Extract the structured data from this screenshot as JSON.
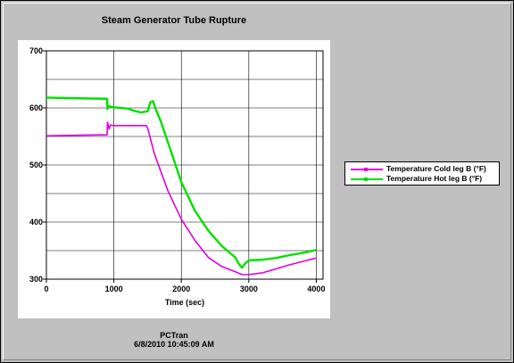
{
  "window": {
    "title": "Steam Generator Tube Rupture",
    "footer_line1": "PCTran",
    "footer_line2": "6/8/2010 10:45:09 AM"
  },
  "legend": [
    {
      "label": "Temperature Cold leg B (°F)",
      "color": "#e000e0"
    },
    {
      "label": "Temperature Hot leg B (°F)",
      "color": "#00e000"
    }
  ],
  "chart_data": {
    "type": "line",
    "title": "Steam Generator Tube Rupture",
    "xlabel": "Time (sec)",
    "ylabel": "",
    "xlim": [
      0,
      4100
    ],
    "ylim": [
      300,
      700
    ],
    "xticks": [
      0,
      1000,
      2000,
      3000,
      4000
    ],
    "yticks": [
      300,
      400,
      500,
      600,
      700
    ],
    "grid": true,
    "legend_position": "right",
    "series": [
      {
        "name": "Temperature Cold leg B (°F)",
        "color": "#e000e0",
        "x": [
          0,
          400,
          900,
          905,
          930,
          950,
          1000,
          1200,
          1480,
          1500,
          1600,
          1800,
          2000,
          2200,
          2400,
          2600,
          2800,
          2900,
          3000,
          3200,
          3400,
          3600,
          3800,
          4000
        ],
        "y": [
          551,
          552,
          553,
          575,
          563,
          570,
          569,
          569,
          569,
          565,
          520,
          455,
          405,
          368,
          338,
          322,
          313,
          308,
          308,
          311,
          318,
          325,
          331,
          337
        ]
      },
      {
        "name": "Temperature Hot leg B (°F)",
        "color": "#00e000",
        "x": [
          0,
          400,
          900,
          905,
          920,
          1000,
          1200,
          1300,
          1400,
          1500,
          1540,
          1580,
          1620,
          1700,
          1800,
          1900,
          2000,
          2200,
          2400,
          2600,
          2800,
          2850,
          2900,
          2950,
          3000,
          3200,
          3400,
          3600,
          3800,
          4000
        ],
        "y": [
          618,
          617,
          616,
          598,
          603,
          601,
          599,
          595,
          592,
          594,
          610,
          612,
          598,
          575,
          540,
          505,
          470,
          420,
          385,
          358,
          338,
          327,
          320,
          328,
          333,
          334,
          337,
          342,
          346,
          351
        ]
      }
    ]
  }
}
